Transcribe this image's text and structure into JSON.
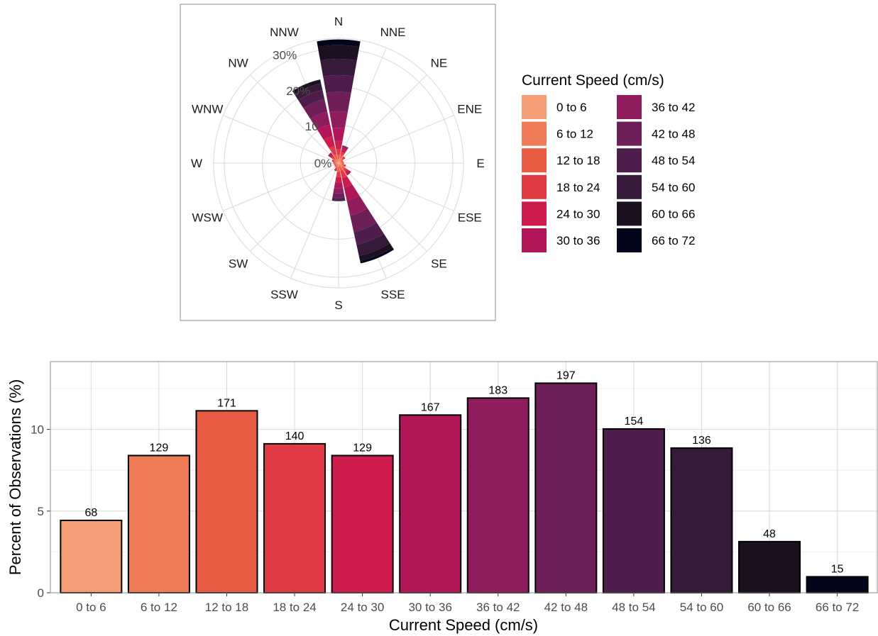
{
  "colors": {
    "speed_palette": [
      "#F59E76",
      "#F07B57",
      "#EA5B43",
      "#E03B45",
      "#CE1D4C",
      "#B11659",
      "#8F1D5E",
      "#6E1F58",
      "#4F1D4B",
      "#361A39",
      "#1B0F20",
      "#03051A"
    ],
    "grid": "#D9D9D9",
    "panel_border": "#8C8C8C",
    "bar_outline": "#000000"
  },
  "chart_data": [
    {
      "type": "windrose",
      "legend_title": "Current Speed (cm/s)",
      "speed_bins": [
        "0 to 6",
        "6 to 12",
        "12 to 18",
        "18 to 24",
        "24 to 30",
        "30 to 36",
        "36 to 42",
        "42 to 48",
        "48 to 54",
        "54 to 60",
        "60 to 66",
        "66 to 72"
      ],
      "directions": [
        "N",
        "NNE",
        "NE",
        "ENE",
        "E",
        "ESE",
        "SE",
        "SSE",
        "S",
        "SSW",
        "SW",
        "WSW",
        "W",
        "WNW",
        "NW",
        "NNW"
      ],
      "radial_ticks": [
        0,
        10,
        20,
        30
      ],
      "radial_tick_labels": [
        "0%",
        "10",
        "20%",
        "30%"
      ],
      "radial_max": 32.8,
      "petals": [
        {
          "direction": "N",
          "total": 32.5,
          "shares": [
            0.4,
            0.7,
            1.0,
            1.6,
            2.2,
            3.4,
            4.3,
            5.1,
            4.4,
            4.3,
            3.6,
            1.5
          ]
        },
        {
          "direction": "NNE",
          "total": 4.8,
          "shares": [
            0.7,
            0.7,
            0.8,
            0.8,
            0.8,
            0.5,
            0.3,
            0.2,
            0,
            0,
            0,
            0
          ]
        },
        {
          "direction": "NE",
          "total": 2.2,
          "shares": [
            0.5,
            0.5,
            0.5,
            0.4,
            0.3,
            0,
            0,
            0,
            0,
            0,
            0,
            0
          ]
        },
        {
          "direction": "ENE",
          "total": 1.3,
          "shares": [
            0.4,
            0.3,
            0.3,
            0.3,
            0,
            0,
            0,
            0,
            0,
            0,
            0,
            0
          ]
        },
        {
          "direction": "E",
          "total": 1.4,
          "shares": [
            0.4,
            0.4,
            0.3,
            0.3,
            0,
            0,
            0,
            0,
            0,
            0,
            0,
            0
          ]
        },
        {
          "direction": "ESE",
          "total": 2.0,
          "shares": [
            0.5,
            0.5,
            0.5,
            0.5,
            0,
            0,
            0,
            0,
            0,
            0,
            0,
            0
          ]
        },
        {
          "direction": "SE",
          "total": 4.0,
          "shares": [
            0.6,
            0.7,
            0.8,
            0.8,
            0.6,
            0.5,
            0,
            0,
            0,
            0,
            0,
            0
          ]
        },
        {
          "direction": "SSE",
          "total": 27.0,
          "shares": [
            0.3,
            0.5,
            1.3,
            2.0,
            2.5,
            3.5,
            4.0,
            4.5,
            3.4,
            3.0,
            1.3,
            0.7
          ]
        },
        {
          "direction": "S",
          "total": 10.0,
          "shares": [
            0.4,
            0.7,
            1.2,
            1.4,
            1.4,
            1.5,
            1.4,
            1.2,
            0.5,
            0.2,
            0.1,
            0
          ]
        },
        {
          "direction": "SSW",
          "total": 2.2,
          "shares": [
            0.4,
            0.5,
            0.5,
            0.5,
            0.3,
            0,
            0,
            0,
            0,
            0,
            0,
            0
          ]
        },
        {
          "direction": "SW",
          "total": 1.3,
          "shares": [
            0.4,
            0.3,
            0.3,
            0.3,
            0,
            0,
            0,
            0,
            0,
            0,
            0,
            0
          ]
        },
        {
          "direction": "WSW",
          "total": 1.2,
          "shares": [
            0.3,
            0.3,
            0.3,
            0.3,
            0,
            0,
            0,
            0,
            0,
            0,
            0,
            0
          ]
        },
        {
          "direction": "W",
          "total": 1.4,
          "shares": [
            0.4,
            0.4,
            0.3,
            0.3,
            0,
            0,
            0,
            0,
            0,
            0,
            0,
            0
          ]
        },
        {
          "direction": "WNW",
          "total": 1.8,
          "shares": [
            0.4,
            0.4,
            0.4,
            0.4,
            0.2,
            0,
            0,
            0,
            0,
            0,
            0,
            0
          ]
        },
        {
          "direction": "NW",
          "total": 3.4,
          "shares": [
            0.5,
            0.6,
            0.6,
            0.6,
            0.5,
            0.4,
            0.2,
            0,
            0,
            0,
            0,
            0
          ]
        },
        {
          "direction": "NNW",
          "total": 22.5,
          "shares": [
            0.3,
            0.6,
            1.5,
            2.2,
            2.7,
            3.1,
            3.4,
            3.4,
            2.5,
            1.8,
            0.8,
            0.2
          ]
        }
      ]
    },
    {
      "type": "bar",
      "categories": [
        "0 to 6",
        "6 to 12",
        "12 to 18",
        "18 to 24",
        "24 to 30",
        "30 to 36",
        "36 to 42",
        "42 to 48",
        "48 to 54",
        "54 to 60",
        "60 to 66",
        "66 to 72"
      ],
      "counts": [
        68,
        129,
        171,
        140,
        129,
        167,
        183,
        197,
        154,
        136,
        48,
        15
      ],
      "data_labels": [
        "68",
        "129",
        "171",
        "140",
        "129",
        "167",
        "183",
        "197",
        "154",
        "136",
        "48",
        "15"
      ],
      "values": [
        4.43,
        8.4,
        11.14,
        9.12,
        8.4,
        10.88,
        11.92,
        12.83,
        10.03,
        8.86,
        3.13,
        0.98
      ],
      "xlabel": "Current Speed (cm/s)",
      "ylabel": "Percent of Observations (%)",
      "ylim": [
        0,
        14.15
      ],
      "yticks": [
        0,
        5,
        10
      ],
      "grid": true
    }
  ]
}
